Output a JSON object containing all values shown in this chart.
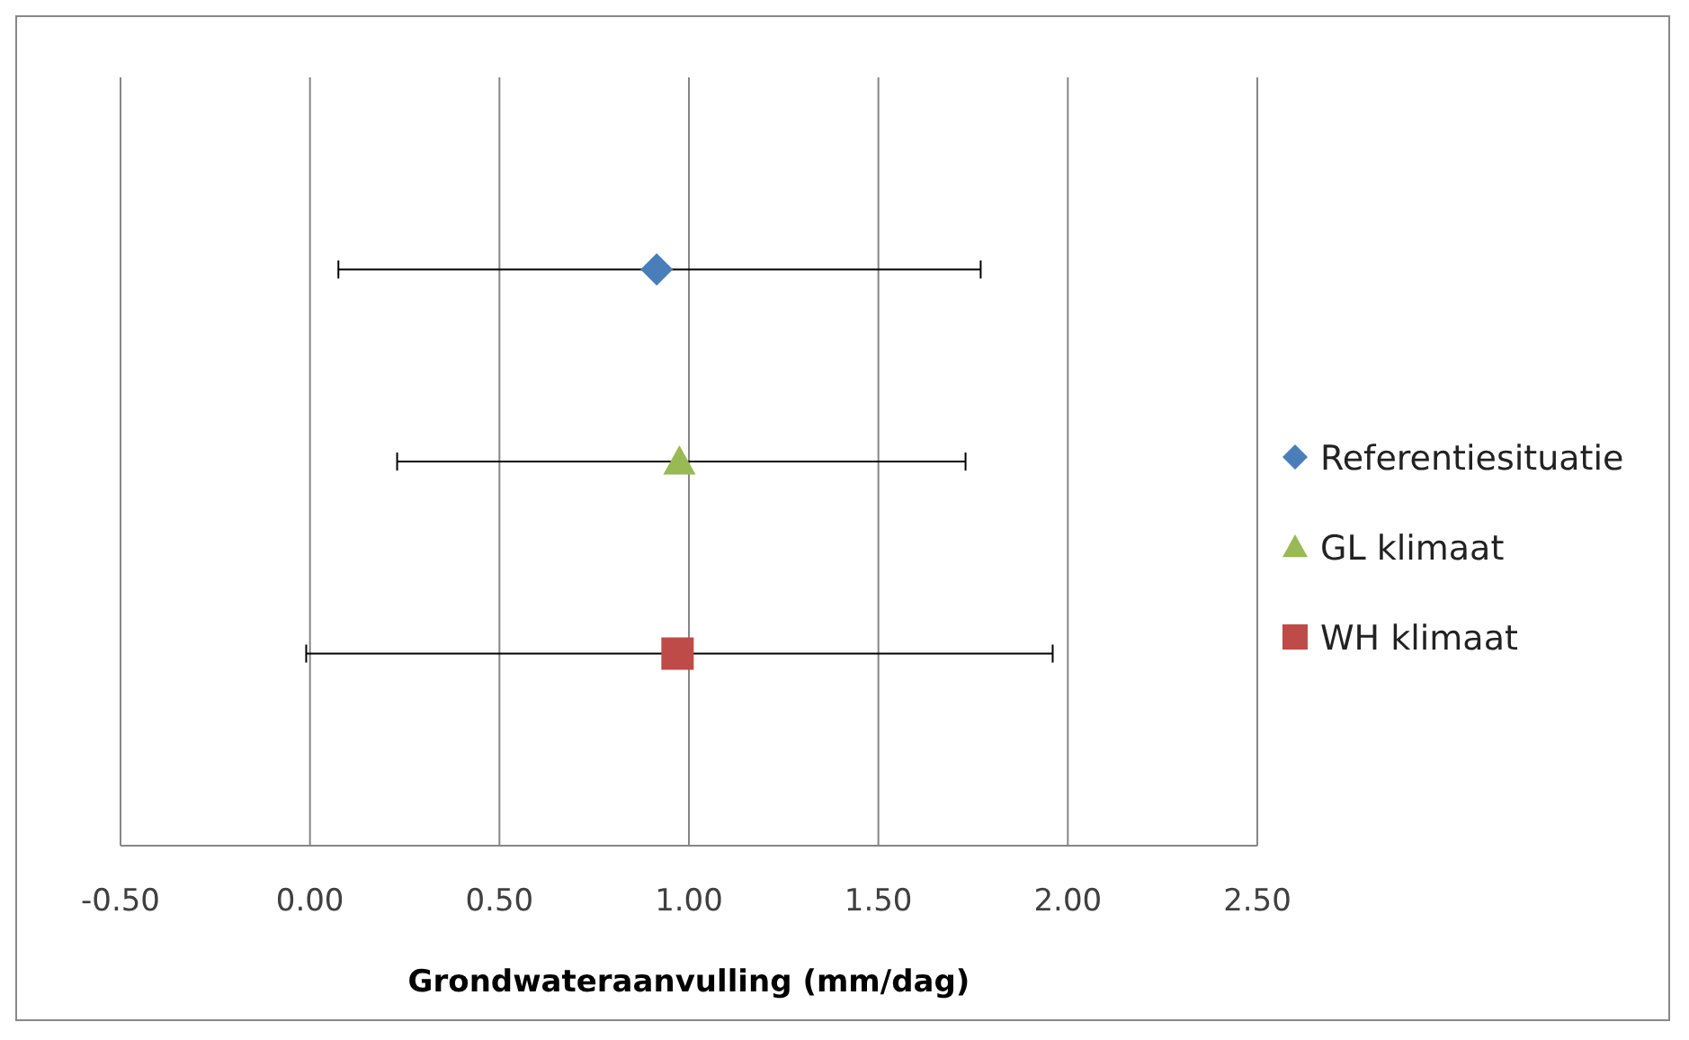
{
  "chart_data": {
    "type": "scatter",
    "orientation": "horizontal",
    "xlabel": "Grondwateraanvulling (mm/dag)",
    "categories": [
      null,
      null,
      null
    ],
    "xlim": [
      -0.5,
      2.5
    ],
    "xticks": [
      {
        "value": -0.5,
        "label": "-0.50"
      },
      {
        "value": 0,
        "label": "0.00"
      },
      {
        "value": 0.5,
        "label": "0.50"
      },
      {
        "value": 1,
        "label": "1.00"
      },
      {
        "value": 1.5,
        "label": "1.50"
      },
      {
        "value": 2,
        "label": "2.00"
      },
      {
        "value": 2.5,
        "label": "2.50"
      }
    ],
    "grid": "x",
    "legend": "right",
    "series": [
      {
        "name": "Referentiesituatie",
        "color": "#4a7ebb",
        "marker": "diamond",
        "values": [
          0.915,
          null,
          null
        ],
        "errors": [
          [
            0.075,
            1.77
          ],
          null,
          null
        ]
      },
      {
        "name": "GL klimaat",
        "color": "#98b954",
        "marker": "triangle",
        "values": [
          null,
          0.975,
          null
        ],
        "errors": [
          null,
          [
            0.23,
            1.73
          ],
          null
        ]
      },
      {
        "name": "WH klimaat",
        "color": "#be4b48",
        "marker": "square",
        "values": [
          null,
          null,
          0.97
        ],
        "errors": [
          null,
          null,
          [
            -0.01,
            1.96
          ]
        ]
      }
    ]
  }
}
